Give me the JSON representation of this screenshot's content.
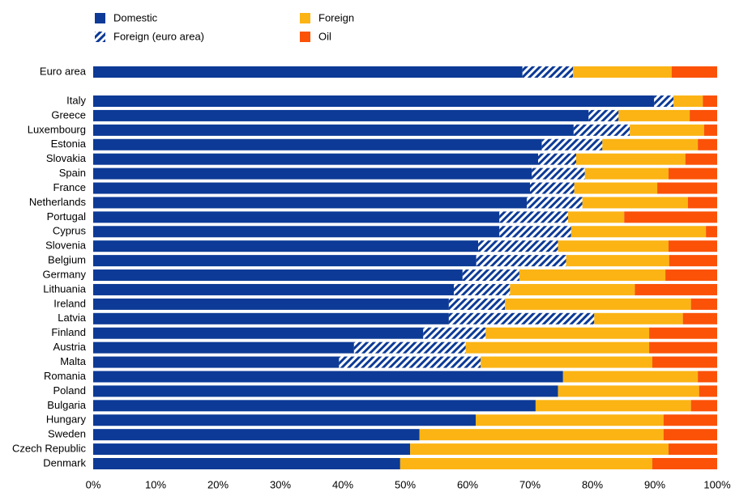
{
  "chart_data": {
    "type": "stacked-bar-horizontal",
    "categories": [
      "Euro area",
      "Italy",
      "Greece",
      "Luxembourg",
      "Estonia",
      "Slovakia",
      "Spain",
      "France",
      "Netherlands",
      "Portugal",
      "Cyprus",
      "Slovenia",
      "Belgium",
      "Germany",
      "Lithuania",
      "Ireland",
      "Latvia",
      "Finland",
      "Austria",
      "Malta",
      "Romania",
      "Poland",
      "Bulgaria",
      "Hungary",
      "Sweden",
      "Czech Republic",
      "Denmark"
    ],
    "series": [
      {
        "name": "Domestic",
        "color": "#0c3a96",
        "values": [
          68.8,
          89.9,
          79.4,
          77.0,
          71.9,
          71.3,
          70.3,
          70.0,
          69.5,
          65.1,
          65.1,
          61.7,
          61.4,
          59.2,
          57.8,
          57.0,
          57.0,
          52.9,
          41.8,
          39.4,
          75.3,
          74.5,
          70.9,
          61.3,
          52.3,
          50.8,
          49.2
        ]
      },
      {
        "name": "Foreign (euro area)",
        "color": "#0c3a96",
        "pattern": "hatch",
        "values": [
          8.1,
          3.1,
          4.8,
          9.0,
          9.7,
          6.1,
          8.5,
          7.1,
          8.9,
          11.0,
          11.5,
          12.8,
          14.4,
          9.1,
          9.0,
          9.0,
          23.3,
          10.0,
          17.9,
          22.7,
          null,
          null,
          null,
          null,
          null,
          null,
          null
        ]
      },
      {
        "name": "Foreign",
        "color": "#fbb414",
        "values": [
          15.8,
          4.7,
          11.4,
          11.9,
          15.3,
          17.5,
          13.4,
          13.3,
          16.9,
          9.0,
          21.6,
          17.7,
          16.5,
          23.4,
          20.0,
          29.8,
          14.2,
          26.2,
          29.4,
          27.5,
          21.6,
          22.6,
          24.9,
          30.1,
          39.1,
          41.4,
          40.4
        ]
      },
      {
        "name": "Oil",
        "color": "#fb5208",
        "values": [
          7.3,
          2.3,
          4.4,
          2.1,
          3.1,
          5.1,
          7.8,
          9.6,
          4.7,
          14.9,
          1.8,
          7.8,
          7.7,
          8.3,
          13.2,
          4.2,
          5.5,
          10.9,
          10.9,
          10.4,
          3.1,
          2.9,
          4.2,
          8.6,
          8.6,
          7.8,
          10.4
        ]
      }
    ],
    "xlim": [
      0,
      100
    ],
    "xticks": [
      {
        "value": 0,
        "label": "0%"
      },
      {
        "value": 10,
        "label": "10%"
      },
      {
        "value": 20,
        "label": "20%"
      },
      {
        "value": 30,
        "label": "30%"
      },
      {
        "value": 40,
        "label": "40%"
      },
      {
        "value": 50,
        "label": "50%"
      },
      {
        "value": 60,
        "label": "60%"
      },
      {
        "value": 70,
        "label": "70%"
      },
      {
        "value": 80,
        "label": "80%"
      },
      {
        "value": 90,
        "label": "90%"
      },
      {
        "value": 100,
        "label": "100%"
      }
    ],
    "grid": false
  }
}
